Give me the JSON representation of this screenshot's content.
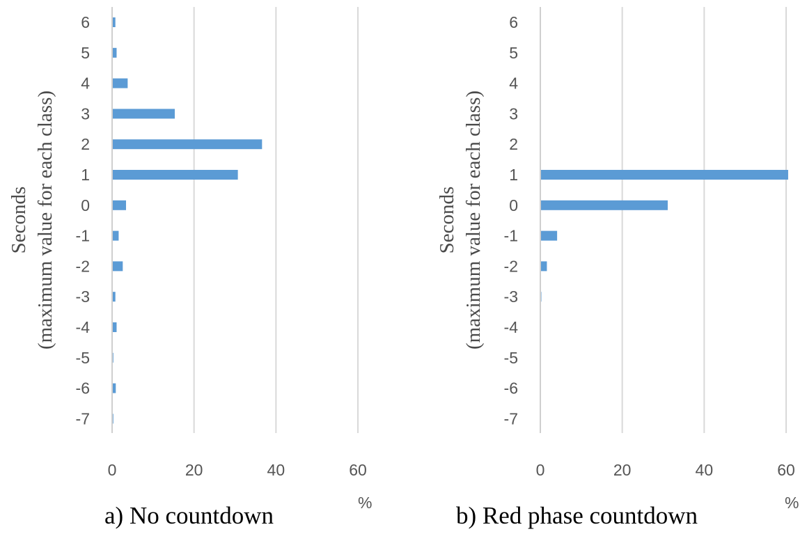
{
  "chart_data": [
    {
      "type": "bar",
      "orientation": "horizontal",
      "caption": "a)  No countdown",
      "ylabel_line1": "Seconds",
      "ylabel_line2": "(maximum  value for each class)",
      "xunit": "%",
      "categories": [
        "6",
        "5",
        "4",
        "3",
        "2",
        "1",
        "0",
        "-1",
        "-2",
        "-3",
        "-4",
        "-5",
        "-6",
        "-7"
      ],
      "values": [
        0.8,
        1.1,
        3.8,
        15.3,
        36.6,
        30.7,
        3.4,
        1.6,
        2.6,
        0.8,
        1.1,
        0.3,
        0.9,
        0.3
      ],
      "xticks": [
        "0",
        "20",
        "40",
        "60"
      ],
      "xlim": [
        0,
        60
      ],
      "color": "#5b9bd5",
      "grid": "vertical"
    },
    {
      "type": "bar",
      "orientation": "horizontal",
      "caption": "b)  Red phase countdown",
      "ylabel_line1": "Seconds",
      "ylabel_line2": "(maximum  value for each class)",
      "xunit": "%",
      "categories": [
        "6",
        "5",
        "4",
        "3",
        "2",
        "1",
        "0",
        "-1",
        "-2",
        "-3",
        "-4",
        "-5",
        "-6",
        "-7"
      ],
      "values": [
        0,
        0,
        0,
        0,
        0,
        60.5,
        31.1,
        4.1,
        1.6,
        0.2,
        0,
        0,
        0,
        0
      ],
      "xticks": [
        "0",
        "20",
        "40",
        "60"
      ],
      "xlim": [
        0,
        60
      ],
      "color": "#5b9bd5",
      "grid": "vertical"
    }
  ]
}
